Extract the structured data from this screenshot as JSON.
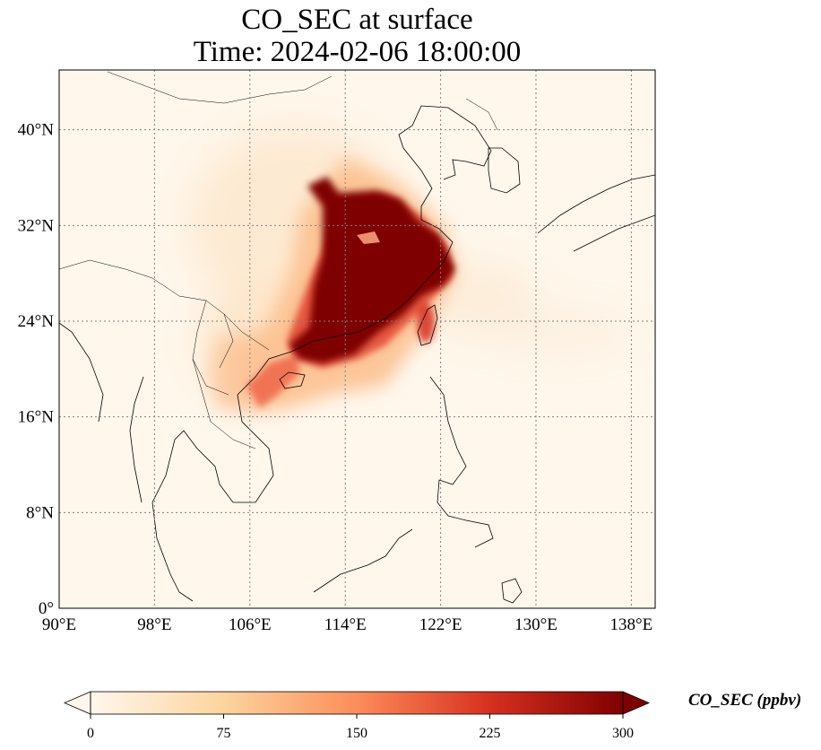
{
  "title": {
    "line1": "CO_SEC at surface",
    "line2": "Time: 2024-02-06 18:00:00"
  },
  "map": {
    "variable": "CO_SEC",
    "level": "surface",
    "projection": "PlateCarree",
    "lon_range": [
      90,
      140
    ],
    "lat_range": [
      0,
      45
    ],
    "gridlines": "dotted gray",
    "lon_ticks": [
      {
        "value": 90,
        "label": "90°E"
      },
      {
        "value": 98,
        "label": "98°E"
      },
      {
        "value": 106,
        "label": "106°E"
      },
      {
        "value": 114,
        "label": "114°E"
      },
      {
        "value": 122,
        "label": "122°E"
      },
      {
        "value": 130,
        "label": "130°E"
      },
      {
        "value": 138,
        "label": "138°E"
      }
    ],
    "lat_ticks": [
      {
        "value": 0,
        "label": "0°"
      },
      {
        "value": 8,
        "label": "8°N"
      },
      {
        "value": 16,
        "label": "16°N"
      },
      {
        "value": 24,
        "label": "24°N"
      },
      {
        "value": 32,
        "label": "32°N"
      },
      {
        "value": 40,
        "label": "40°N"
      }
    ],
    "colormap": "OrRd",
    "plume_color": "#7f0000",
    "background_color": "#fff7ec"
  },
  "colorbar": {
    "label": "CO_SEC (ppbv)",
    "min": 0,
    "max": 300,
    "extend": "both",
    "ticks": [
      {
        "value": 0,
        "label": "0"
      },
      {
        "value": 75,
        "label": "75"
      },
      {
        "value": 150,
        "label": "150"
      },
      {
        "value": 225,
        "label": "225"
      },
      {
        "value": 300,
        "label": "300"
      }
    ],
    "colors": [
      "#fff7ec",
      "#fdd49e",
      "#fc8d59",
      "#d7301f",
      "#7f0000"
    ]
  }
}
